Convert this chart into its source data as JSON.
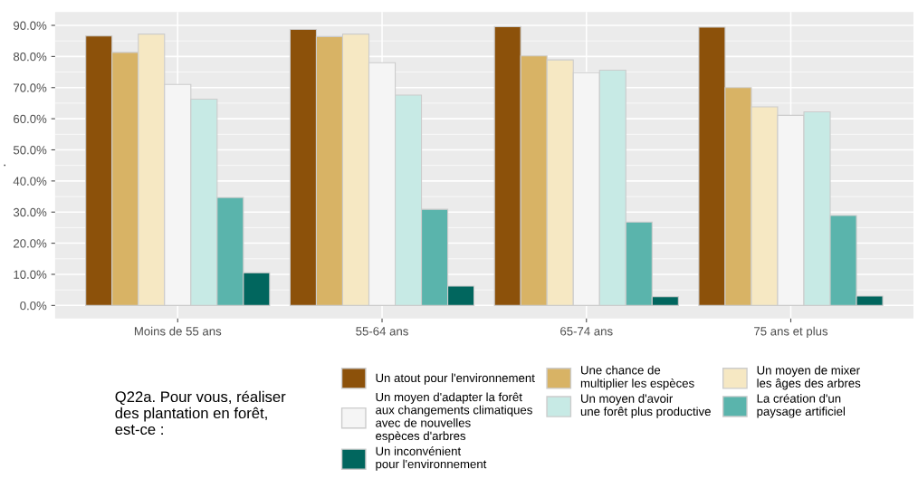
{
  "chart_data": {
    "type": "bar",
    "ylabel": ".",
    "legend_title": "Q22a. Pour vous, réaliser\ndes plantation en forêt,\nest-ce :",
    "categories": [
      "Moins de 55 ans",
      "55-64 ans",
      "65-74 ans",
      "75 ans et plus"
    ],
    "series": [
      {
        "name": "Un atout pour l'environnement",
        "color": "#8c510a",
        "values": [
          86.6,
          88.7,
          89.6,
          89.4
        ]
      },
      {
        "name": "Une chance de\nmultiplier les espèces",
        "color": "#d8b365",
        "values": [
          81.3,
          86.4,
          80.2,
          70.0
        ]
      },
      {
        "name": "Un moyen de mixer\nles âges des arbres",
        "color": "#f6e8c3",
        "values": [
          87.2,
          87.2,
          78.9,
          63.8
        ]
      },
      {
        "name": "Un moyen d'adapter la forêt\naux changements climatiques\navec de nouvelles\nespèces d'arbres",
        "color": "#f5f5f5",
        "values": [
          71.0,
          78.0,
          74.8,
          61.1
        ]
      },
      {
        "name": "Un moyen d'avoir\nune forêt plus productive",
        "color": "#c7eae5",
        "values": [
          66.3,
          67.6,
          75.6,
          62.2
        ]
      },
      {
        "name": "La création d'un\npaysage artificiel",
        "color": "#5ab4ac",
        "values": [
          34.7,
          30.9,
          26.8,
          28.9
        ]
      },
      {
        "name": "Un inconvénient\npour l'environnement",
        "color": "#01665e",
        "values": [
          10.5,
          6.2,
          2.8,
          3.0
        ]
      }
    ],
    "ylim": [
      -4.2,
      94.3
    ],
    "yticks": [
      {
        "value": 0,
        "label": "0.0%"
      },
      {
        "value": 10,
        "label": "10.0%"
      },
      {
        "value": 20,
        "label": "20.0%"
      },
      {
        "value": 30,
        "label": "30.0%"
      },
      {
        "value": 40,
        "label": "40.0%"
      },
      {
        "value": 50,
        "label": "50.0%"
      },
      {
        "value": 60,
        "label": "60.0%"
      },
      {
        "value": 70,
        "label": "70.0%"
      },
      {
        "value": 80,
        "label": "80.0%"
      },
      {
        "value": 90,
        "label": "90.0%"
      }
    ],
    "grid": true,
    "legend": "bottom"
  }
}
